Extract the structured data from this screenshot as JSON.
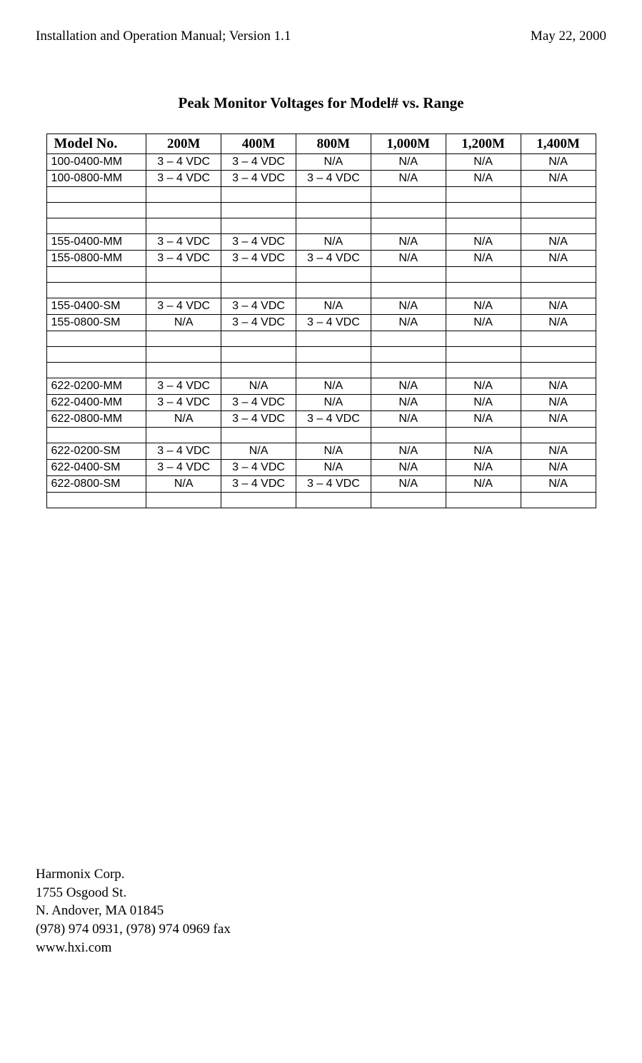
{
  "header": {
    "left": "Installation and Operation Manual; Version 1.1",
    "right": "May 22, 2000"
  },
  "table": {
    "title": "Peak Monitor Voltages for Model# vs. Range",
    "model_header": "Model No.",
    "range_headers": [
      "200M",
      "400M",
      "800M",
      "1,000M",
      "1,200M",
      "1,400M"
    ],
    "rows": [
      {
        "model": "100-0400-MM",
        "values": [
          "3 – 4 VDC",
          "3 – 4 VDC",
          "N/A",
          "N/A",
          "N/A",
          "N/A"
        ]
      },
      {
        "model": "100-0800-MM",
        "values": [
          "3 – 4 VDC",
          "3 – 4 VDC",
          "3 – 4 VDC",
          "N/A",
          "N/A",
          "N/A"
        ]
      },
      {
        "model": "",
        "values": [
          "",
          "",
          "",
          "",
          "",
          ""
        ]
      },
      {
        "model": "",
        "values": [
          "",
          "",
          "",
          "",
          "",
          ""
        ]
      },
      {
        "model": "",
        "values": [
          "",
          "",
          "",
          "",
          "",
          ""
        ]
      },
      {
        "model": "155-0400-MM",
        "values": [
          "3 – 4 VDC",
          "3 – 4 VDC",
          "N/A",
          "N/A",
          "N/A",
          "N/A"
        ]
      },
      {
        "model": "155-0800-MM",
        "values": [
          "3 – 4 VDC",
          "3 – 4 VDC",
          "3 – 4 VDC",
          "N/A",
          "N/A",
          "N/A"
        ]
      },
      {
        "model": "",
        "values": [
          "",
          "",
          "",
          "",
          "",
          ""
        ]
      },
      {
        "model": "",
        "values": [
          "",
          "",
          "",
          "",
          "",
          ""
        ]
      },
      {
        "model": "155-0400-SM",
        "values": [
          "3 – 4 VDC",
          "3 – 4 VDC",
          "N/A",
          "N/A",
          "N/A",
          "N/A"
        ]
      },
      {
        "model": "155-0800-SM",
        "values": [
          "N/A",
          "3 – 4 VDC",
          "3 – 4 VDC",
          "N/A",
          "N/A",
          "N/A"
        ]
      },
      {
        "model": "",
        "values": [
          "",
          "",
          "",
          "",
          "",
          ""
        ]
      },
      {
        "model": "",
        "values": [
          "",
          "",
          "",
          "",
          "",
          ""
        ]
      },
      {
        "model": "",
        "values": [
          "",
          "",
          "",
          "",
          "",
          ""
        ]
      },
      {
        "model": "622-0200-MM",
        "values": [
          "3 – 4 VDC",
          "N/A",
          "N/A",
          "N/A",
          "N/A",
          "N/A"
        ]
      },
      {
        "model": "622-0400-MM",
        "values": [
          "3 – 4 VDC",
          "3 – 4 VDC",
          "N/A",
          "N/A",
          "N/A",
          "N/A"
        ]
      },
      {
        "model": "622-0800-MM",
        "values": [
          "N/A",
          "3 – 4 VDC",
          "3 – 4 VDC",
          "N/A",
          "N/A",
          "N/A"
        ]
      },
      {
        "model": "",
        "values": [
          "",
          "",
          "",
          "",
          "",
          ""
        ]
      },
      {
        "model": "622-0200-SM",
        "values": [
          "3 – 4 VDC",
          "N/A",
          "N/A",
          "N/A",
          "N/A",
          "N/A"
        ]
      },
      {
        "model": "622-0400-SM",
        "values": [
          "3 – 4 VDC",
          "3 – 4 VDC",
          "N/A",
          "N/A",
          "N/A",
          "N/A"
        ]
      },
      {
        "model": "622-0800-SM",
        "values": [
          "N/A",
          "3 – 4 VDC",
          "3 – 4 VDC",
          "N/A",
          "N/A",
          "N/A"
        ]
      },
      {
        "model": "",
        "values": [
          "",
          "",
          "",
          "",
          "",
          ""
        ]
      }
    ]
  },
  "footer": {
    "lines": [
      "Harmonix Corp.",
      "1755 Osgood St.",
      "N. Andover, MA 01845",
      "(978) 974 0931, (978) 974 0969 fax",
      "www.hxi.com"
    ]
  }
}
